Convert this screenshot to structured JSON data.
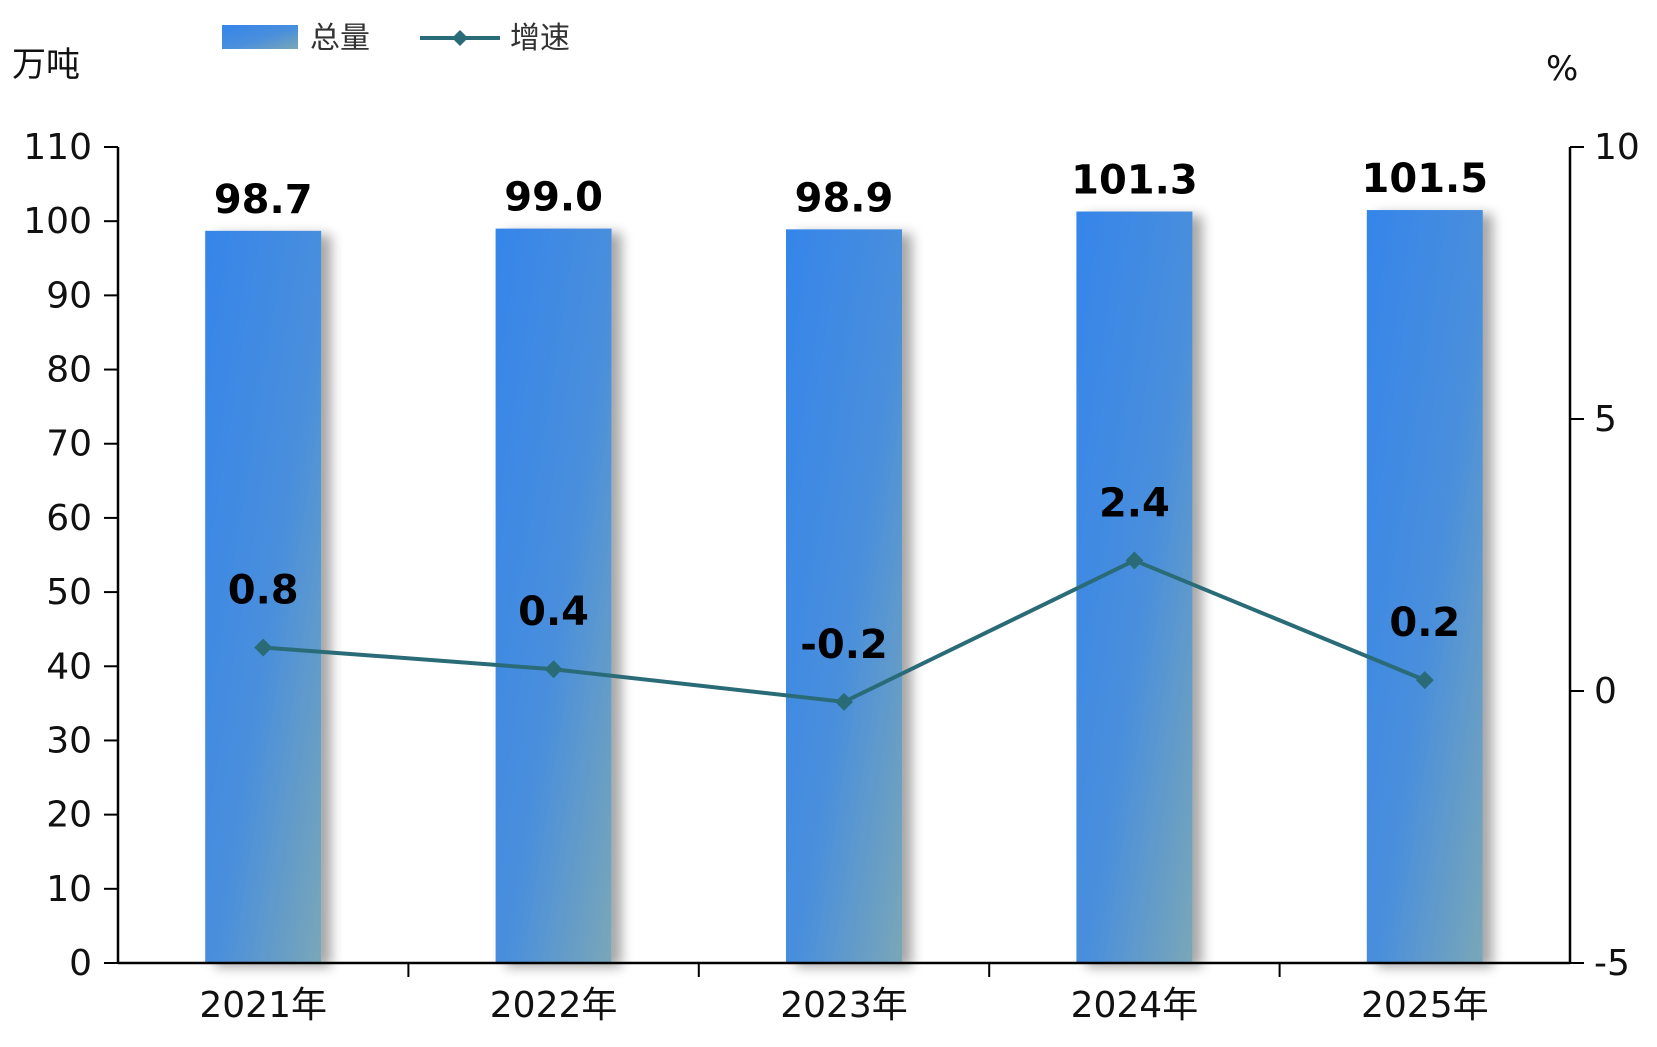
{
  "chart_data": {
    "type": "bar",
    "categories": [
      "2021年",
      "2022年",
      "2023年",
      "2024年",
      "2025年"
    ],
    "series": [
      {
        "name": "总量",
        "type": "bar",
        "axis": "left",
        "values": [
          98.7,
          99.0,
          98.9,
          101.3,
          101.5
        ],
        "labels": [
          "98.7",
          "99.0",
          "98.9",
          "101.3",
          "101.5"
        ]
      },
      {
        "name": "增速",
        "type": "line",
        "axis": "right",
        "values": [
          0.8,
          0.4,
          -0.2,
          2.4,
          0.2
        ],
        "labels": [
          "0.8",
          "0.4",
          "-0.2",
          "2.4",
          "0.2"
        ]
      }
    ],
    "ylabel_left": "万吨",
    "ylabel_right": "%",
    "ylim_left": [
      0,
      110
    ],
    "yticks_left": [
      "0",
      "10",
      "20",
      "30",
      "40",
      "50",
      "60",
      "70",
      "80",
      "90",
      "100",
      "110"
    ],
    "ylim_right": [
      -5,
      10
    ],
    "yticks_right": [
      "-5",
      "0",
      "5",
      "10"
    ],
    "legend": {
      "position": "top-left",
      "entries": [
        "总量",
        "增速"
      ]
    },
    "grid": false,
    "colors": {
      "bar": "#3a86e6",
      "bar_shade": "#6aa0c0",
      "line": "#2a6b78"
    }
  }
}
